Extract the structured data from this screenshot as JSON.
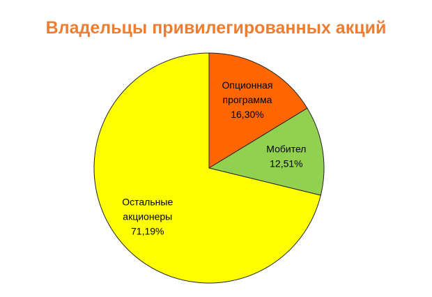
{
  "chart_data": {
    "type": "pie",
    "title": "Владельцы привилегированных акций",
    "categories": [
      "Опционная программа",
      "Мобител",
      "Остальные акционеры"
    ],
    "values": [
      16.3,
      12.51,
      71.19
    ],
    "value_labels": [
      "16,30%",
      "12,51%",
      "71,19%"
    ],
    "colors": [
      "#ff6600",
      "#92d050",
      "#ffff00"
    ]
  }
}
